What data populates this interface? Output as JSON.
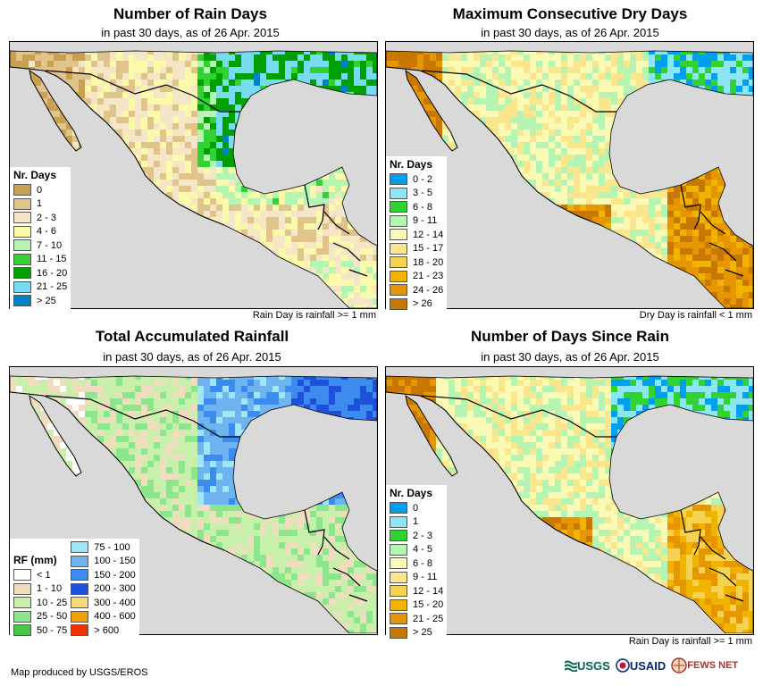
{
  "panels": [
    {
      "title": "Number of Rain Days",
      "subtitle": "in past 30 days, as of 26 Apr. 2015",
      "note": "Rain Day is rainfall >= 1 mm",
      "legend_title": "Nr. Days",
      "legend": [
        {
          "label": "0",
          "color": "#c8a050"
        },
        {
          "label": "1",
          "color": "#e1c48c"
        },
        {
          "label": "2 - 3",
          "color": "#f5e6c8"
        },
        {
          "label": "4 - 6",
          "color": "#fafaaa"
        },
        {
          "label": "7 - 10",
          "color": "#b4f5b4"
        },
        {
          "label": "11 - 15",
          "color": "#32d232"
        },
        {
          "label": "16 - 20",
          "color": "#00a000"
        },
        {
          "label": "21 - 25",
          "color": "#78dcf0"
        },
        {
          "label": "> 25",
          "color": "#0082c8"
        }
      ]
    },
    {
      "title": "Maximum Consecutive Dry Days",
      "subtitle": "in past 30 days, as of 26 Apr. 2015",
      "note": "Dry Day is rainfall < 1 mm",
      "legend_title": "Nr. Days",
      "legend": [
        {
          "label": "0 - 2",
          "color": "#00a0f0"
        },
        {
          "label": "3 - 5",
          "color": "#8ce6f5"
        },
        {
          "label": "6 - 8",
          "color": "#32d232"
        },
        {
          "label": "9 - 11",
          "color": "#b4f5b4"
        },
        {
          "label": "12 - 14",
          "color": "#fafab4"
        },
        {
          "label": "15 - 17",
          "color": "#fae68c"
        },
        {
          "label": "18 - 20",
          "color": "#f5d250"
        },
        {
          "label": "21 - 23",
          "color": "#f0b400"
        },
        {
          "label": "24 - 26",
          "color": "#e69600"
        },
        {
          "label": "> 26",
          "color": "#c87800"
        }
      ]
    },
    {
      "title": "Total Accumulated Rainfall",
      "subtitle": "in past 30 days, as of 26 Apr. 2015",
      "note": "",
      "legend_title": "RF (mm)",
      "legend": [
        {
          "label": "< 1",
          "color": "#ffffff"
        },
        {
          "label": "1 - 10",
          "color": "#f0dcbe"
        },
        {
          "label": "10 - 25",
          "color": "#c8f0aa"
        },
        {
          "label": "25 - 50",
          "color": "#8ce68c"
        },
        {
          "label": "50 - 75",
          "color": "#46c846"
        },
        {
          "label": "75 - 100",
          "color": "#a0e6fa"
        },
        {
          "label": "100 - 150",
          "color": "#6eb4f0"
        },
        {
          "label": "150 - 200",
          "color": "#3c8cf0"
        },
        {
          "label": "200 - 300",
          "color": "#1e50dc"
        },
        {
          "label": "300 - 400",
          "color": "#f5dc78"
        },
        {
          "label": "400 - 600",
          "color": "#f0a000"
        },
        {
          "label": "> 600",
          "color": "#f03200"
        }
      ]
    },
    {
      "title": "Number of Days Since Rain",
      "subtitle": "in past 30 days, as of 26 Apr. 2015",
      "note": "Rain Day is rainfall >= 1 mm",
      "legend_title": "Nr. Days",
      "legend": [
        {
          "label": "0",
          "color": "#00a0f0"
        },
        {
          "label": "1",
          "color": "#8ce6f5"
        },
        {
          "label": "2 - 3",
          "color": "#32d232"
        },
        {
          "label": "4 - 5",
          "color": "#b4f5b4"
        },
        {
          "label": "6 - 8",
          "color": "#fafab4"
        },
        {
          "label": "9 - 11",
          "color": "#fae68c"
        },
        {
          "label": "12 - 14",
          "color": "#f5d250"
        },
        {
          "label": "15 - 20",
          "color": "#f0b400"
        },
        {
          "label": "21 - 25",
          "color": "#e69600"
        },
        {
          "label": "> 25",
          "color": "#c87800"
        }
      ]
    }
  ],
  "credit": "Map produced by USGS/EROS",
  "logos": [
    "USGS",
    "USAID",
    "FEWS NET"
  ],
  "colors": {
    "ocean": "#d9d9d9",
    "border": "#000000"
  }
}
